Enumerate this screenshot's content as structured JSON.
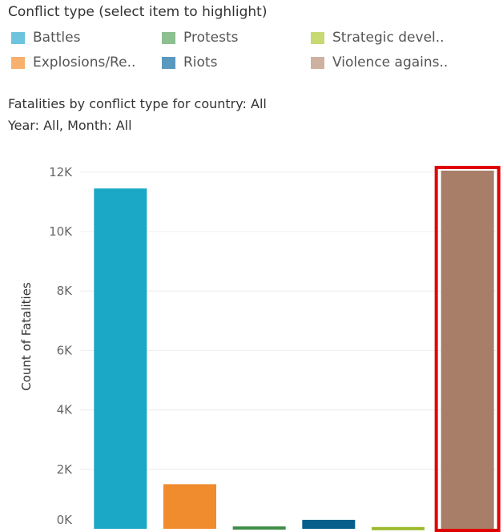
{
  "legend": {
    "title": "Conflict type (select item to highlight)",
    "items": [
      {
        "label": "Battles",
        "color": "#6ec4dc"
      },
      {
        "label": "Protests",
        "color": "#8cc08f"
      },
      {
        "label": "Strategic devel..",
        "color": "#c7d971"
      },
      {
        "label": "Explosions/Re..",
        "color": "#f7b06d"
      },
      {
        "label": "Riots",
        "color": "#5a98bf"
      },
      {
        "label": "Violence agains..",
        "color": "#cfb1a1"
      }
    ]
  },
  "chart_data": {
    "type": "bar",
    "title": "Fatalities by conflict type for country: All",
    "subtitle": "Year: All, Month: All",
    "xlabel": "",
    "ylabel": "Count of Fatalities",
    "categories": [
      "Battles",
      "Explosions/Re..",
      "Protests",
      "Riots",
      "Strategic devel..",
      "Violence agains.."
    ],
    "values": [
      11450,
      1500,
      80,
      300,
      60,
      12050
    ],
    "colors": [
      "#1ba7c6",
      "#f08b2e",
      "#3f8d47",
      "#075e8b",
      "#9dba2d",
      "#a87e68"
    ],
    "ylim": [
      0,
      12400
    ],
    "yticks": [
      0,
      2000,
      4000,
      6000,
      8000,
      10000,
      12000
    ],
    "ytick_labels": [
      "0K",
      "2K",
      "4K",
      "6K",
      "8K",
      "10K",
      "12K"
    ],
    "grid": true,
    "highlighted": "Violence agains..",
    "highlight_color": "#e00000"
  }
}
